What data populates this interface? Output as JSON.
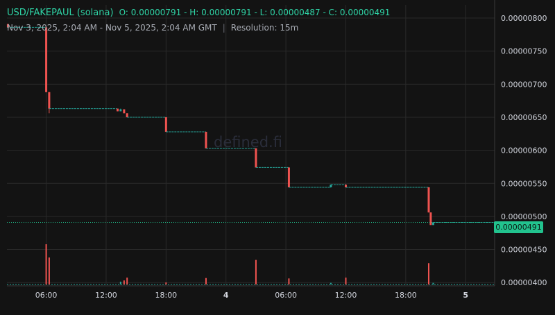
{
  "header": {
    "pair": "USD/FAKEPAUL (solana)",
    "ohlc": "O: 0.00000791 - H: 0.00000791 - L: 0.00000487 - C: 0.00000491",
    "range": "Nov 3, 2025, 2:04 AM - Nov 5, 2025, 2:04 AM GMT",
    "separator": "|",
    "resolution": "Resolution: 15m"
  },
  "watermark": "defined.fi",
  "last_price": "0.00000491",
  "colors": {
    "up": "#26a69a",
    "down": "#ef5350",
    "accent": "#22c38e",
    "grid": "#2a2a2a",
    "background": "#131313"
  },
  "chart_data": {
    "type": "candlestick",
    "x_ticks": [
      "06:00",
      "12:00",
      "18:00",
      "4",
      "06:00",
      "12:00",
      "18:00",
      "5"
    ],
    "x_tick_hours": [
      6,
      12,
      18,
      24,
      30,
      36,
      42,
      48
    ],
    "y_ticks": [
      "0.00000800",
      "0.00000750",
      "0.00000700",
      "0.00000650",
      "0.00000600",
      "0.00000550",
      "0.00000500",
      "0.00000450",
      "0.00000400"
    ],
    "ylim": [
      3.96e-06,
      8.2e-06
    ],
    "xlim_hours": [
      2.07,
      50.9
    ],
    "last_price": 4.91e-06,
    "segments": [
      {
        "type": "flat",
        "t0": 2.07,
        "t1": 6.0,
        "p": 7.86e-06
      },
      {
        "type": "candle",
        "t": 2.17,
        "o": 7.91e-06,
        "c": 7.86e-06,
        "h": 7.91e-06,
        "l": 7.86e-06
      },
      {
        "type": "candle",
        "t": 6.0,
        "o": 7.86e-06,
        "c": 6.88e-06,
        "h": 7.86e-06,
        "l": 6.88e-06
      },
      {
        "type": "candle",
        "t": 6.3,
        "o": 6.88e-06,
        "c": 6.63e-06,
        "h": 6.88e-06,
        "l": 6.56e-06
      },
      {
        "type": "flat",
        "t0": 6.3,
        "t1": 13.1,
        "p": 6.63e-06
      },
      {
        "type": "candle",
        "t": 13.15,
        "o": 6.63e-06,
        "c": 6.59e-06,
        "h": 6.63e-06,
        "l": 6.59e-06
      },
      {
        "type": "candle",
        "t": 13.45,
        "o": 6.59e-06,
        "c": 6.62e-06,
        "h": 6.63e-06,
        "l": 6.59e-06
      },
      {
        "type": "candle",
        "t": 13.8,
        "o": 6.62e-06,
        "c": 6.56e-06,
        "h": 6.62e-06,
        "l": 6.56e-06
      },
      {
        "type": "candle",
        "t": 14.1,
        "o": 6.56e-06,
        "c": 6.5e-06,
        "h": 6.56e-06,
        "l": 6.5e-06
      },
      {
        "type": "flat",
        "t0": 14.1,
        "t1": 18.0,
        "p": 6.5e-06
      },
      {
        "type": "candle",
        "t": 18.0,
        "o": 6.5e-06,
        "c": 6.28e-06,
        "h": 6.5e-06,
        "l": 6.28e-06
      },
      {
        "type": "flat",
        "t0": 18.0,
        "t1": 22.0,
        "p": 6.28e-06
      },
      {
        "type": "candle",
        "t": 22.0,
        "o": 6.28e-06,
        "c": 6.03e-06,
        "h": 6.28e-06,
        "l": 6.03e-06
      },
      {
        "type": "flat",
        "t0": 22.0,
        "t1": 27.0,
        "p": 6.03e-06
      },
      {
        "type": "candle",
        "t": 27.0,
        "o": 6.03e-06,
        "c": 5.74e-06,
        "h": 6.03e-06,
        "l": 5.74e-06
      },
      {
        "type": "flat",
        "t0": 27.0,
        "t1": 30.3,
        "p": 5.74e-06
      },
      {
        "type": "candle",
        "t": 30.3,
        "o": 5.74e-06,
        "c": 5.44e-06,
        "h": 5.74e-06,
        "l": 5.44e-06
      },
      {
        "type": "flat",
        "t0": 30.3,
        "t1": 34.5,
        "p": 5.44e-06
      },
      {
        "type": "candle",
        "t": 34.5,
        "o": 5.44e-06,
        "c": 5.48e-06,
        "h": 5.48e-06,
        "l": 5.44e-06
      },
      {
        "type": "flat",
        "t0": 34.5,
        "t1": 36.0,
        "p": 5.48e-06
      },
      {
        "type": "candle",
        "t": 36.0,
        "o": 5.48e-06,
        "c": 5.44e-06,
        "h": 5.48e-06,
        "l": 5.44e-06
      },
      {
        "type": "flat",
        "t0": 36.0,
        "t1": 44.3,
        "p": 5.44e-06
      },
      {
        "type": "candle",
        "t": 44.3,
        "o": 5.44e-06,
        "c": 5.06e-06,
        "h": 5.44e-06,
        "l": 5.06e-06
      },
      {
        "type": "candle",
        "t": 44.5,
        "o": 5.06e-06,
        "c": 4.87e-06,
        "h": 5.06e-06,
        "l": 4.87e-06
      },
      {
        "type": "candle",
        "t": 44.75,
        "o": 4.87e-06,
        "c": 4.91e-06,
        "h": 4.91e-06,
        "l": 4.87e-06
      },
      {
        "type": "flat",
        "t0": 44.75,
        "t1": 50.9,
        "p": 4.91e-06
      }
    ],
    "volume": {
      "max_relative": 1.0,
      "bars": [
        {
          "t": 6.0,
          "v": 1.0,
          "dir": "down"
        },
        {
          "t": 6.3,
          "v": 0.67,
          "dir": "down"
        },
        {
          "t": 13.45,
          "v": 0.07,
          "dir": "up"
        },
        {
          "t": 13.8,
          "v": 0.1,
          "dir": "down"
        },
        {
          "t": 14.1,
          "v": 0.17,
          "dir": "down"
        },
        {
          "t": 18.0,
          "v": 0.05,
          "dir": "down"
        },
        {
          "t": 22.0,
          "v": 0.16,
          "dir": "down"
        },
        {
          "t": 27.0,
          "v": 0.61,
          "dir": "down"
        },
        {
          "t": 30.3,
          "v": 0.15,
          "dir": "down"
        },
        {
          "t": 34.5,
          "v": 0.04,
          "dir": "up"
        },
        {
          "t": 36.0,
          "v": 0.17,
          "dir": "down"
        },
        {
          "t": 44.3,
          "v": 0.53,
          "dir": "down"
        },
        {
          "t": 44.75,
          "v": 0.04,
          "dir": "up"
        }
      ]
    }
  }
}
